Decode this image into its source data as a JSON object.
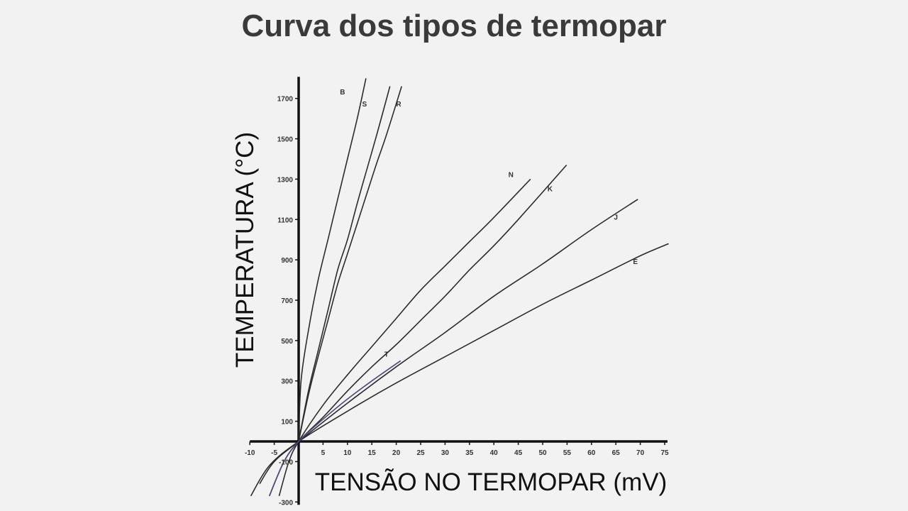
{
  "slide": {
    "title": "Curva dos tipos de termopar"
  },
  "chart_data": {
    "type": "line",
    "title": "Curva dos tipos de termopar",
    "xlabel": "TENSÃO NO TERMOPAR (mV)",
    "ylabel": "TEMPERATURA (°C)",
    "xlim": [
      -10,
      75
    ],
    "ylim": [
      -300,
      1800
    ],
    "x_ticks": [
      -10,
      -5,
      5,
      10,
      15,
      20,
      25,
      30,
      35,
      40,
      45,
      50,
      55,
      60,
      65,
      70,
      75
    ],
    "y_ticks": [
      -300,
      -100,
      100,
      300,
      500,
      700,
      900,
      1100,
      1300,
      1500,
      1700
    ],
    "grid": false,
    "line_color": "#2b2b2b",
    "t_line_color": "#4a4a7a",
    "series": [
      {
        "name": "B",
        "x": [
          0,
          0.5,
          2,
          4,
          6,
          8,
          10,
          12,
          13.8
        ],
        "y": [
          0,
          300,
          550,
          800,
          1000,
          1200,
          1400,
          1600,
          1800
        ]
      },
      {
        "name": "S",
        "x": [
          0,
          2,
          4,
          6,
          8,
          10,
          12,
          14,
          16,
          18.7
        ],
        "y": [
          0,
          250,
          450,
          650,
          850,
          1000,
          1180,
          1350,
          1520,
          1760
        ]
      },
      {
        "name": "R",
        "x": [
          0,
          2,
          4,
          6,
          8,
          10,
          12,
          14,
          16,
          18,
          21.1
        ],
        "y": [
          0,
          230,
          420,
          600,
          780,
          930,
          1080,
          1230,
          1380,
          1520,
          1760
        ]
      },
      {
        "name": "N",
        "x": [
          -4,
          -2,
          0,
          5,
          10,
          15,
          20,
          25,
          30,
          35,
          40,
          47.5
        ],
        "y": [
          -270,
          -100,
          0,
          180,
          330,
          470,
          610,
          750,
          870,
          990,
          1110,
          1300
        ]
      },
      {
        "name": "K",
        "x": [
          -6,
          -3,
          0,
          5,
          10,
          15,
          20,
          25,
          30,
          35,
          40,
          45,
          54.9
        ],
        "y": [
          -270,
          -100,
          0,
          120,
          250,
          370,
          480,
          600,
          720,
          850,
          970,
          1100,
          1370
        ]
      },
      {
        "name": "J",
        "x": [
          -8,
          -5,
          0,
          10,
          20,
          30,
          40,
          50,
          60,
          69.5
        ],
        "y": [
          -210,
          -100,
          0,
          190,
          370,
          540,
          720,
          880,
          1050,
          1200
        ]
      },
      {
        "name": "E",
        "x": [
          -9.8,
          -6,
          0,
          10,
          20,
          30,
          40,
          50,
          60,
          70,
          75.8
        ],
        "y": [
          -270,
          -120,
          0,
          150,
          290,
          420,
          550,
          680,
          800,
          920,
          980
        ]
      },
      {
        "name": "T",
        "x": [
          -6,
          -3,
          0,
          5,
          10,
          15,
          20.9
        ],
        "y": [
          -270,
          -100,
          0,
          110,
          210,
          300,
          400
        ]
      }
    ],
    "label_positions": {
      "B": [
        9.0,
        1720
      ],
      "S": [
        13.5,
        1660
      ],
      "R": [
        20.5,
        1660
      ],
      "N": [
        43.5,
        1310
      ],
      "K": [
        51.5,
        1240
      ],
      "J": [
        65.0,
        1100
      ],
      "E": [
        69.0,
        880
      ],
      "T": [
        18.0,
        420
      ]
    }
  }
}
